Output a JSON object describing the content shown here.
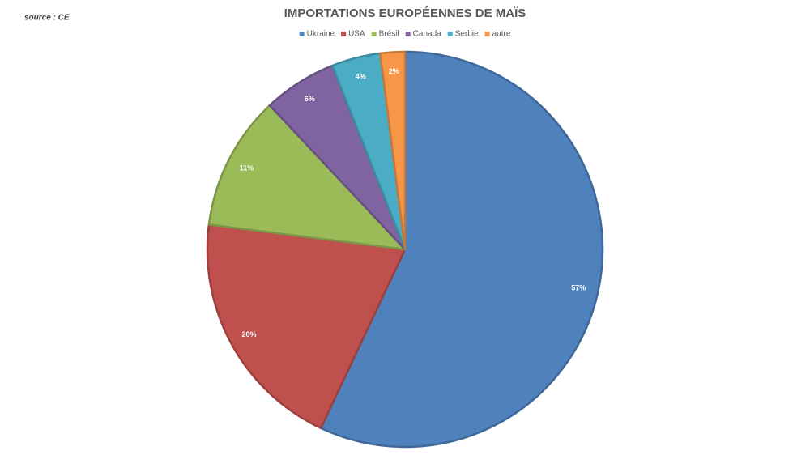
{
  "chart_data": {
    "type": "pie",
    "title": "IMPORTATIONS EUROPÉENNES DE MAÏS",
    "source": "source : CE",
    "categories": [
      "Ukraine",
      "USA",
      "Brésil",
      "Canada",
      "Serbie",
      "autre"
    ],
    "values": [
      57,
      20,
      11,
      6,
      4,
      2
    ],
    "value_labels": [
      "57%",
      "20%",
      "11%",
      "6%",
      "4%",
      "2%"
    ],
    "colors": [
      "#4f81bd",
      "#c0504d",
      "#9bbb59",
      "#8064a2",
      "#4bacc6",
      "#f79646"
    ],
    "legend": "top"
  }
}
